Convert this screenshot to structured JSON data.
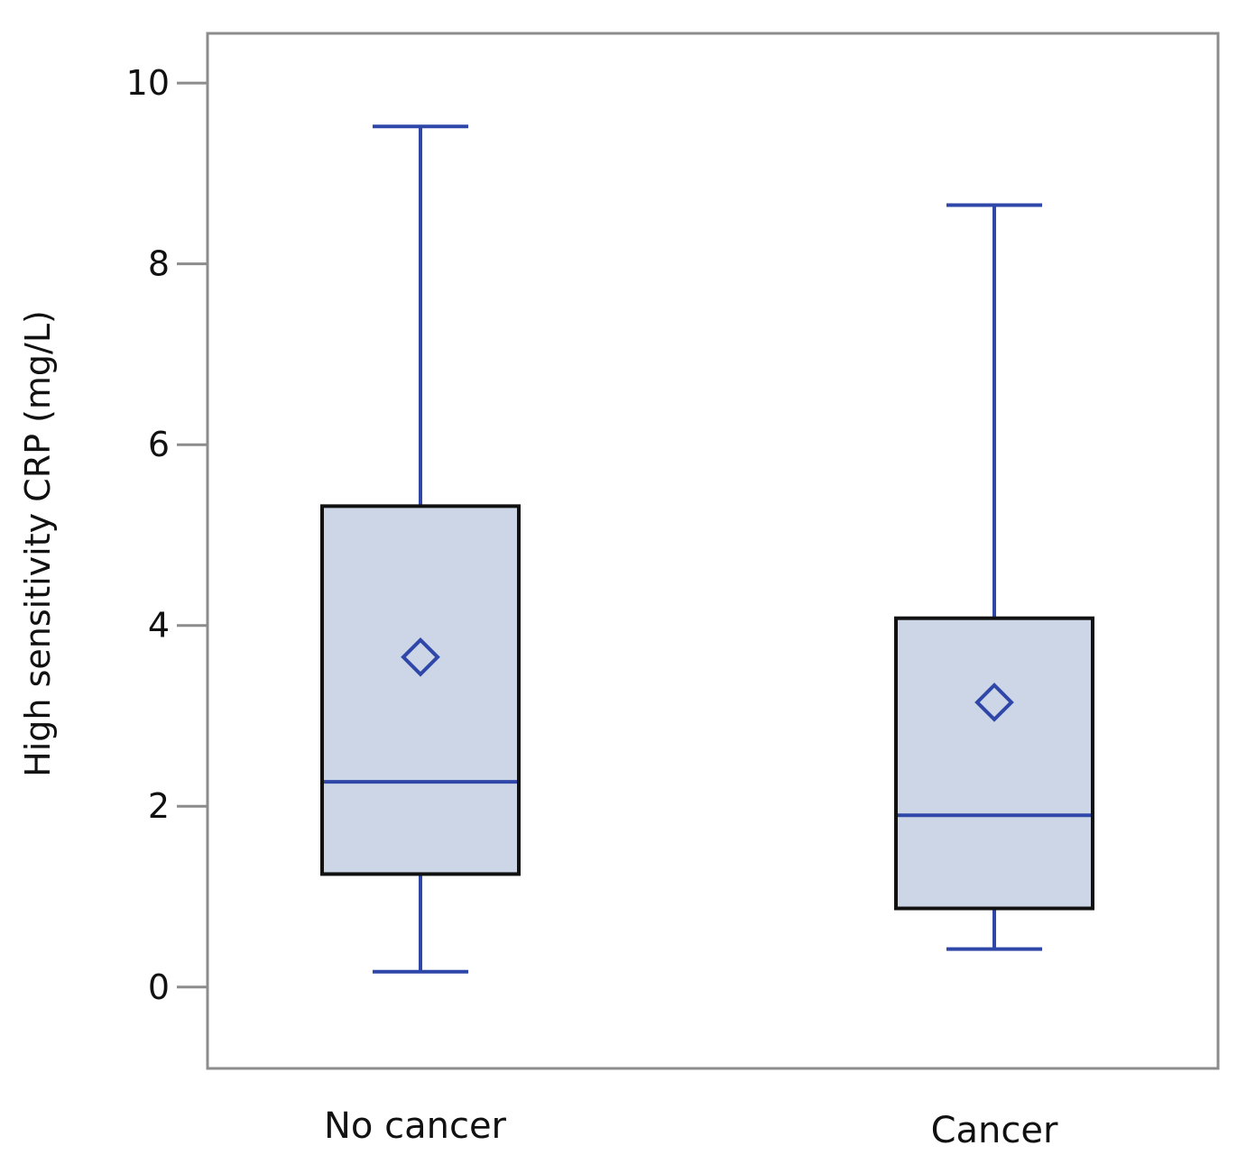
{
  "chart_data": {
    "type": "boxplot",
    "title": "",
    "xlabel": "",
    "ylabel": "High sensitivity CRP (mg/L)",
    "ylim": [
      -0.9,
      10.55
    ],
    "yticks": [
      0,
      2,
      4,
      6,
      8,
      10
    ],
    "yticklabels": [
      "0",
      "2",
      "4",
      "6",
      "8",
      "10"
    ],
    "grid": false,
    "categories": [
      "No cancer",
      "Cancer"
    ],
    "boxes": [
      {
        "name": "No cancer",
        "whisker_low": 0.17,
        "q1": 1.25,
        "median": 2.27,
        "q3": 5.32,
        "whisker_high": 9.52,
        "mean": 3.65
      },
      {
        "name": "Cancer",
        "whisker_low": 0.42,
        "q1": 0.87,
        "median": 1.9,
        "q3": 4.08,
        "whisker_high": 8.65,
        "mean": 3.15
      }
    ],
    "colors": {
      "box_fill": "#cdd6e6",
      "box_edge": "#111111",
      "whisker": "#2e47a8",
      "median": "#2e47a8",
      "mean_marker": "#2e47a8",
      "frame": "#8c8c8c"
    }
  }
}
